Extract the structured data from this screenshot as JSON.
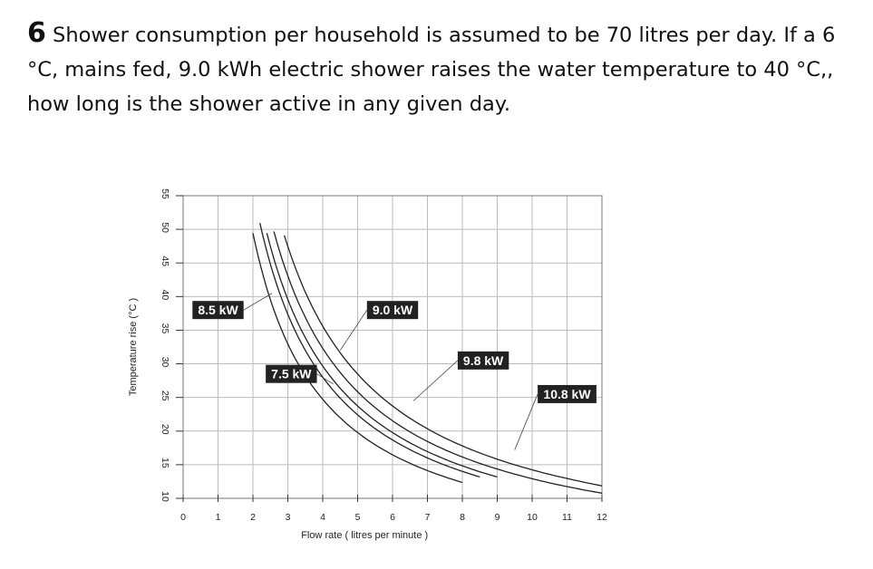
{
  "question": {
    "number": "6",
    "line1": "Shower consumption per household is assumed to be 70 litres per day. If a 6",
    "line2": "°C, mains fed, 9.0 kWh electric shower raises the water temperature  to 40 °C,,",
    "line3": "how long is the shower active in any given day."
  },
  "chart_data": {
    "type": "line",
    "xlabel": "Flow rate ( litres per minute )",
    "ylabel": "Temperature rise (°C )",
    "xlim": [
      0,
      12
    ],
    "ylim": [
      10,
      55
    ],
    "xticks": [
      "0",
      "1",
      "2",
      "3",
      "4",
      "5",
      "6",
      "7",
      "8",
      "9",
      "10",
      "11",
      "12"
    ],
    "yticks": [
      "10",
      "15",
      "20",
      "25",
      "30",
      "35",
      "40",
      "45",
      "50",
      "55"
    ],
    "grid": true,
    "series": [
      {
        "name": "7.5 kW",
        "power_kw": 7.5,
        "x_range": [
          2.0,
          8.0
        ]
      },
      {
        "name": "8.5 kW",
        "power_kw": 8.5,
        "x_range": [
          2.2,
          8.5
        ]
      },
      {
        "name": "9.0 kW",
        "power_kw": 9.0,
        "x_range": [
          2.4,
          9.0
        ]
      },
      {
        "name": "9.8 kW",
        "power_kw": 9.8,
        "x_range": [
          2.6,
          12.0
        ]
      },
      {
        "name": "10.8 kW",
        "power_kw": 10.8,
        "x_range": [
          2.9,
          12.0
        ]
      }
    ],
    "colors": {
      "curve": "#222222",
      "grid": "#bbbbbb",
      "label_bg": "#222222",
      "label_text": "#ffffff"
    }
  }
}
